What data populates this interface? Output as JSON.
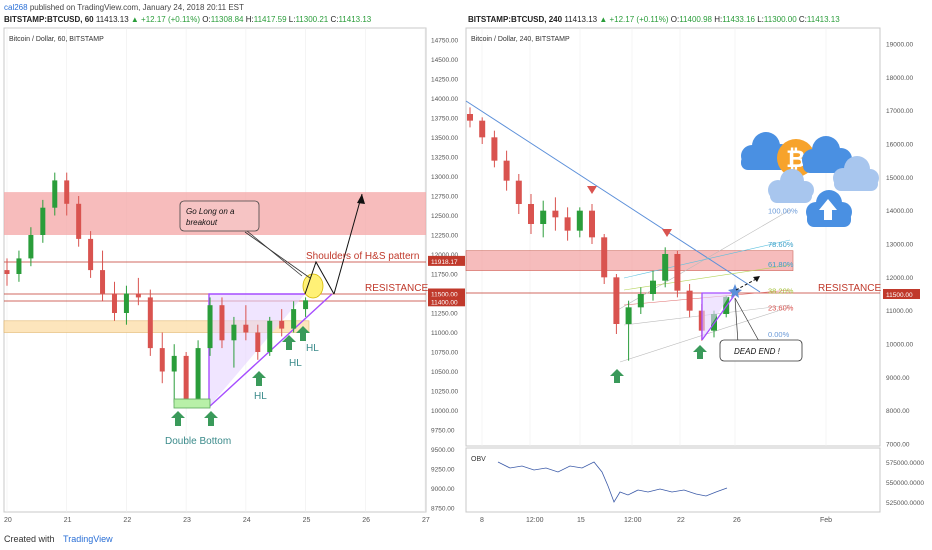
{
  "header": {
    "author": "cal268",
    "published": "published on TradingView.com, January 24, 2018 20:11 EST"
  },
  "footer": {
    "created_with": "Created with",
    "brand": "TradingView"
  },
  "left_ticker": {
    "symbol": "BITSTAMP:BTCUSD, 60",
    "last": "11413.13",
    "change": "▲ +12.17 (+0.11%)",
    "o_label": "O:",
    "o": "11308.84",
    "h_label": "H:",
    "h": "11417.59",
    "l_label": "L:",
    "l": "11300.21",
    "c_label": "C:",
    "c": "11413.13"
  },
  "right_ticker": {
    "symbol": "BITSTAMP:BTCUSD, 240",
    "last": "11413.13",
    "change": "▲ +12.17 (+0.11%)",
    "o_label": "O:",
    "o": "11400.98",
    "h_label": "H:",
    "h": "11433.16",
    "l_label": "L:",
    "l": "11300.00",
    "c_label": "C:",
    "c": "11413.13"
  },
  "colors": {
    "up": "#2a9d3a",
    "down": "#d9534f",
    "zone": "#f4a6a6",
    "support": "#fde3b5",
    "triangle": "#a64dff",
    "trend": "#5b8fd9",
    "resistance_line": "#c0392b",
    "label_red": "#c0392b",
    "label_teal": "#3a8a8a",
    "marker_green": "#3a9a5a"
  },
  "chart_data": [
    {
      "type": "candlestick",
      "title": "Bitcoin / Dollar, 60, BITSTAMP",
      "ylim": [
        8750,
        14750
      ],
      "xlim": [
        20,
        27
      ],
      "y_ticks": [
        "14750.00",
        "14500.00",
        "14250.00",
        "14000.00",
        "13750.00",
        "13500.00",
        "13250.00",
        "13000.00",
        "12750.00",
        "12500.00",
        "12250.00",
        "12000.00",
        "11750.00",
        "11500.00",
        "11250.00",
        "11000.00",
        "10750.00",
        "10500.00",
        "10250.00",
        "10000.00",
        "9750.00",
        "9500.00",
        "9250.00",
        "9000.00",
        "8750.00"
      ],
      "x_ticks": [
        "20",
        "21",
        "22",
        "23",
        "24",
        "25",
        "26",
        "27"
      ],
      "price_labels": [
        {
          "value": 11918.17,
          "text": "11918.17"
        },
        {
          "value": 11500,
          "text": "11500.00"
        },
        {
          "value": 11400,
          "text": "11400.00"
        }
      ],
      "resistance_zone": [
        12250,
        12800
      ],
      "support_zone": [
        11000,
        11150
      ],
      "annotations": [
        "Go Long on a breakout",
        "Shoulders of H&S pattern",
        "RESISTANCE",
        "HL",
        "HL",
        "HL",
        "Double Bottom"
      ],
      "series": [
        {
          "x": 20.0,
          "o": 11800,
          "h": 11950,
          "l": 11600,
          "c": 11750
        },
        {
          "x": 20.2,
          "o": 11750,
          "h": 12050,
          "l": 11650,
          "c": 11950
        },
        {
          "x": 20.4,
          "o": 11950,
          "h": 12350,
          "l": 11850,
          "c": 12250
        },
        {
          "x": 20.6,
          "o": 12250,
          "h": 12700,
          "l": 12150,
          "c": 12600
        },
        {
          "x": 20.8,
          "o": 12600,
          "h": 13050,
          "l": 12500,
          "c": 12950
        },
        {
          "x": 21.0,
          "o": 12950,
          "h": 13050,
          "l": 12500,
          "c": 12650
        },
        {
          "x": 21.2,
          "o": 12650,
          "h": 12750,
          "l": 12100,
          "c": 12200
        },
        {
          "x": 21.4,
          "o": 12200,
          "h": 12300,
          "l": 11700,
          "c": 11800
        },
        {
          "x": 21.6,
          "o": 11800,
          "h": 12050,
          "l": 11400,
          "c": 11500
        },
        {
          "x": 21.8,
          "o": 11500,
          "h": 11650,
          "l": 11150,
          "c": 11250
        },
        {
          "x": 22.0,
          "o": 11250,
          "h": 11600,
          "l": 11100,
          "c": 11500
        },
        {
          "x": 22.2,
          "o": 11500,
          "h": 11700,
          "l": 11350,
          "c": 11450
        },
        {
          "x": 22.4,
          "o": 11450,
          "h": 11550,
          "l": 10700,
          "c": 10800
        },
        {
          "x": 22.6,
          "o": 10800,
          "h": 11000,
          "l": 10350,
          "c": 10500
        },
        {
          "x": 22.8,
          "o": 10500,
          "h": 10850,
          "l": 10100,
          "c": 10700
        },
        {
          "x": 23.0,
          "o": 10700,
          "h": 10750,
          "l": 10050,
          "c": 10150
        },
        {
          "x": 23.2,
          "o": 10150,
          "h": 10900,
          "l": 10050,
          "c": 10800
        },
        {
          "x": 23.4,
          "o": 10800,
          "h": 11450,
          "l": 10700,
          "c": 11350
        },
        {
          "x": 23.6,
          "o": 11350,
          "h": 11450,
          "l": 10800,
          "c": 10900
        },
        {
          "x": 23.8,
          "o": 10900,
          "h": 11200,
          "l": 10550,
          "c": 11100
        },
        {
          "x": 24.0,
          "o": 11100,
          "h": 11350,
          "l": 10900,
          "c": 11000
        },
        {
          "x": 24.2,
          "o": 11000,
          "h": 11100,
          "l": 10650,
          "c": 10750
        },
        {
          "x": 24.4,
          "o": 10750,
          "h": 11200,
          "l": 10700,
          "c": 11150
        },
        {
          "x": 24.6,
          "o": 11150,
          "h": 11300,
          "l": 10950,
          "c": 11050
        },
        {
          "x": 24.8,
          "o": 11050,
          "h": 11400,
          "l": 11000,
          "c": 11300
        },
        {
          "x": 25.0,
          "o": 11300,
          "h": 11450,
          "l": 11200,
          "c": 11413
        }
      ]
    },
    {
      "type": "candlestick",
      "title": "Bitcoin / Dollar, 240, BITSTAMP",
      "ylim": [
        7000,
        19000
      ],
      "y_ticks": [
        "19000.00",
        "18000.00",
        "17000.00",
        "16000.00",
        "15000.00",
        "14000.00",
        "13000.00",
        "12000.00",
        "11000.00",
        "10000.00",
        "9000.00",
        "8000.00",
        "7000.00"
      ],
      "x_ticks": [
        "8",
        "12:00",
        "15",
        "12:00",
        "22",
        "26",
        "Feb"
      ],
      "price_labels": [
        {
          "value": 11500,
          "text": "11500.00"
        }
      ],
      "fib_levels": [
        {
          "label": "100.00%",
          "value": 14000
        },
        {
          "label": "78.60%",
          "value": 13000
        },
        {
          "label": "61.80%",
          "value": 12400
        },
        {
          "label": "38.20%",
          "value": 11600
        },
        {
          "label": "23.60%",
          "value": 11100
        },
        {
          "label": "0.00%",
          "value": 10300
        }
      ],
      "resistance_zone": [
        12200,
        12800
      ],
      "annotations": [
        "RESISTANCE",
        "DEAD END !"
      ],
      "series": [
        {
          "x": 0,
          "o": 16900,
          "h": 17100,
          "l": 16500,
          "c": 16700
        },
        {
          "x": 1,
          "o": 16700,
          "h": 16800,
          "l": 16000,
          "c": 16200
        },
        {
          "x": 2,
          "o": 16200,
          "h": 16400,
          "l": 15300,
          "c": 15500
        },
        {
          "x": 3,
          "o": 15500,
          "h": 15800,
          "l": 14600,
          "c": 14900
        },
        {
          "x": 4,
          "o": 14900,
          "h": 15100,
          "l": 13900,
          "c": 14200
        },
        {
          "x": 5,
          "o": 14200,
          "h": 14500,
          "l": 13300,
          "c": 13600
        },
        {
          "x": 6,
          "o": 13600,
          "h": 14300,
          "l": 13200,
          "c": 14000
        },
        {
          "x": 7,
          "o": 14000,
          "h": 14400,
          "l": 13400,
          "c": 13800
        },
        {
          "x": 8,
          "o": 13800,
          "h": 14100,
          "l": 13100,
          "c": 13400
        },
        {
          "x": 9,
          "o": 13400,
          "h": 14100,
          "l": 13200,
          "c": 14000
        },
        {
          "x": 10,
          "o": 14000,
          "h": 14200,
          "l": 13000,
          "c": 13200
        },
        {
          "x": 11,
          "o": 13200,
          "h": 13300,
          "l": 11800,
          "c": 12000
        },
        {
          "x": 12,
          "o": 12000,
          "h": 12100,
          "l": 10300,
          "c": 10600
        },
        {
          "x": 13,
          "o": 10600,
          "h": 11300,
          "l": 9500,
          "c": 11100
        },
        {
          "x": 14,
          "o": 11100,
          "h": 11700,
          "l": 10900,
          "c": 11500
        },
        {
          "x": 15,
          "o": 11500,
          "h": 12200,
          "l": 11300,
          "c": 11900
        },
        {
          "x": 16,
          "o": 11900,
          "h": 12900,
          "l": 11700,
          "c": 12700
        },
        {
          "x": 17,
          "o": 12700,
          "h": 12800,
          "l": 11400,
          "c": 11600
        },
        {
          "x": 18,
          "o": 11600,
          "h": 11800,
          "l": 10800,
          "c": 11000
        },
        {
          "x": 19,
          "o": 11000,
          "h": 11200,
          "l": 10100,
          "c": 10400
        },
        {
          "x": 20,
          "o": 10400,
          "h": 11000,
          "l": 10200,
          "c": 10900
        },
        {
          "x": 21,
          "o": 10900,
          "h": 11450,
          "l": 10800,
          "c": 11413
        }
      ]
    }
  ],
  "obv": {
    "label": "OBV",
    "ticks": [
      "575000.0000",
      "550000.0000",
      "525000.0000"
    ]
  }
}
